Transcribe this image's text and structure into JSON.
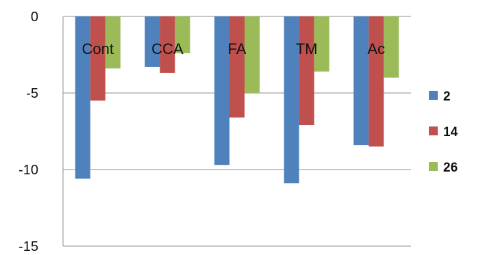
{
  "chart_data": {
    "type": "bar",
    "title": "",
    "xlabel": "",
    "ylabel": "",
    "categories": [
      "Cont",
      "CCA",
      "FA",
      "TM",
      "Ac"
    ],
    "series": [
      {
        "name": "2",
        "values": [
          -10.6,
          -3.3,
          -9.7,
          -10.9,
          -8.4
        ],
        "color": "#4f81bd"
      },
      {
        "name": "14",
        "values": [
          -5.5,
          -3.7,
          -6.6,
          -7.1,
          -8.5
        ],
        "color": "#c0504d"
      },
      {
        "name": "26",
        "values": [
          -3.4,
          -2.4,
          -5.0,
          -3.6,
          -4.0
        ],
        "color": "#9bbb59"
      }
    ],
    "ylim": [
      -15,
      0
    ],
    "yticks": [
      0,
      -5,
      -10,
      -15
    ],
    "grid": true,
    "legend": "right"
  }
}
